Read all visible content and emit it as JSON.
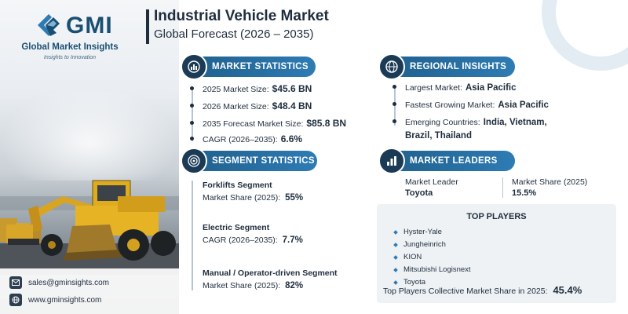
{
  "brand": {
    "logo_text": "GMI",
    "name": "Global Market Insights",
    "tagline": "Insights to Innovation"
  },
  "header": {
    "title": "Industrial Vehicle Market",
    "subtitle": "Global Forecast (2026 – 2035)"
  },
  "market_statistics": {
    "heading": "MARKET STATISTICS",
    "icon": "globe-chart-icon",
    "rows": [
      {
        "label": "2025 Market Size:",
        "value": "$45.6 BN"
      },
      {
        "label": "2026 Market Size:",
        "value": "$48.4 BN"
      },
      {
        "label": "2035 Forecast Market Size:",
        "value": "$85.8 BN"
      },
      {
        "label": "CAGR (2026–2035):",
        "value": "6.6%"
      }
    ]
  },
  "regional_insights": {
    "heading": "REGIONAL INSIGHTS",
    "icon": "globe-icon",
    "rows": [
      {
        "label": "Largest Market:",
        "value": "Asia Pacific"
      },
      {
        "label": "Fastest Growing Market:",
        "value": "Asia Pacific"
      },
      {
        "label": "Emerging Countries:",
        "value": "India, Vietnam,",
        "value2": "Brazil, Thailand"
      }
    ]
  },
  "segment_statistics": {
    "heading": "SEGMENT STATISTICS",
    "icon": "target-icon",
    "items": [
      {
        "title": "Forklifts Segment",
        "label": "Market Share (2025):",
        "value": "55%"
      },
      {
        "title": "Electric Segment",
        "label": "CAGR (2026–2035):",
        "value": "7.7%"
      },
      {
        "title": "Manual / Operator-driven Segment",
        "label": "Market Share (2025):",
        "value": "82%"
      }
    ]
  },
  "market_leaders": {
    "heading": "MARKET LEADERS",
    "icon": "bar-chart-icon",
    "leader_label": "Market Leader",
    "leader_value": "Toyota",
    "share_label": "Market Share (2025)",
    "share_value": "15.5%"
  },
  "top_players": {
    "heading": "TOP PLAYERS",
    "players": [
      "Hyster-Yale",
      "Jungheinrich",
      "KION",
      "Mitsubishi Logisnext",
      "Toyota"
    ],
    "collective_label": "Top Players Collective Market Share in 2025:",
    "collective_value": "45.4%"
  },
  "contact": {
    "email": "sales@gminsights.com",
    "email_icon": "mail-icon",
    "website": "www.gminsights.com",
    "website_icon": "globe-icon"
  },
  "colors": {
    "accent": "#2e7bb4",
    "dark": "#1f2d3d",
    "brand": "#1b4f72"
  }
}
